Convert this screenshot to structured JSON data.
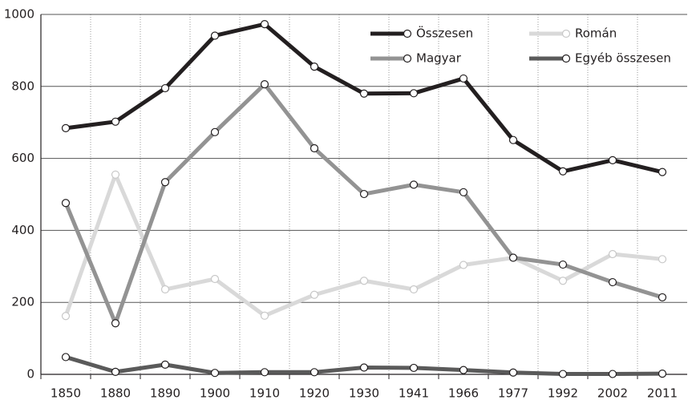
{
  "chart_data": {
    "type": "line",
    "categories": [
      "1850",
      "1880",
      "1890",
      "1900",
      "1910",
      "1920",
      "1930",
      "1941",
      "1966",
      "1977",
      "1992",
      "2002",
      "2011"
    ],
    "series": [
      {
        "name": "Összesen",
        "color": "#231f20",
        "values": [
          684,
          702,
          795,
          941,
          973,
          855,
          780,
          781,
          822,
          651,
          564,
          595,
          562
        ]
      },
      {
        "name": "Román",
        "color": "#d9d9d9",
        "values": [
          162,
          555,
          236,
          265,
          163,
          221,
          260,
          236,
          304,
          324,
          260,
          334,
          320
        ]
      },
      {
        "name": "Magyar",
        "color": "#939393",
        "values": [
          476,
          142,
          534,
          673,
          806,
          628,
          501,
          527,
          506,
          324,
          305,
          256,
          214
        ]
      },
      {
        "name": "Egyéb összesen",
        "color": "#5a5a5a",
        "values": [
          48,
          7,
          27,
          4,
          6,
          6,
          19,
          18,
          12,
          5,
          1,
          1,
          2
        ]
      }
    ],
    "ylim": [
      0,
      1000
    ],
    "yticks": [
      0,
      200,
      400,
      600,
      800,
      1000
    ],
    "grid": true,
    "legend": "upper right"
  }
}
